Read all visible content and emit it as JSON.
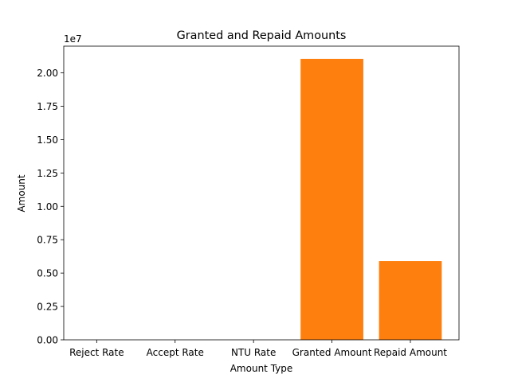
{
  "chart_data": {
    "type": "bar",
    "title": "Granted and Repaid Amounts",
    "xlabel": "Amount Type",
    "ylabel": "Amount",
    "offset_label": "1e7",
    "categories": [
      "Reject Rate",
      "Accept Rate",
      "NTU Rate",
      "Granted Amount",
      "Repaid Amount"
    ],
    "values": [
      0.0,
      0.0,
      0.0,
      21050000,
      5900000
    ],
    "ylim": [
      0,
      22000000
    ],
    "yticks": [
      0,
      2500000,
      5000000,
      7500000,
      10000000,
      12500000,
      15000000,
      17500000,
      20000000
    ],
    "ytick_labels": [
      "0.00",
      "0.25",
      "0.50",
      "0.75",
      "1.00",
      "1.25",
      "1.50",
      "1.75",
      "2.00"
    ],
    "bar_color": "#ff7f0e",
    "grid": false,
    "legend": "none"
  }
}
